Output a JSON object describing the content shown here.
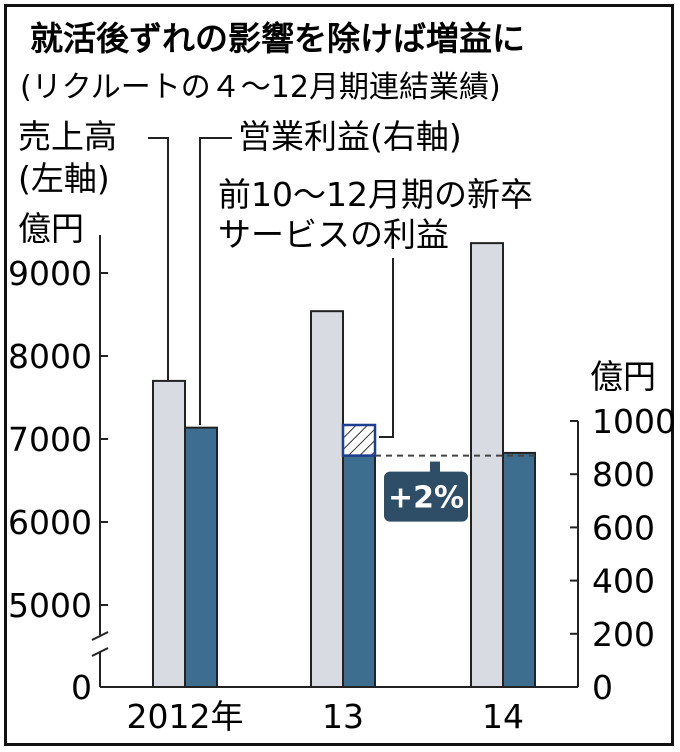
{
  "chart_data": {
    "type": "bar",
    "title": "就活後ずれの影響を除けば増益に",
    "subtitle": "(リクルートの４～12月期連結業績)",
    "categories": [
      "2012年",
      "13",
      "14"
    ],
    "left_axis": {
      "unit": "億円",
      "ticks": [
        "0",
        "5000",
        "6000",
        "7000",
        "8000",
        "9000"
      ],
      "range": [
        4400,
        9500
      ],
      "break": true
    },
    "right_axis": {
      "unit": "億円",
      "ticks": [
        "0",
        "200",
        "400",
        "600",
        "800",
        "1000"
      ],
      "range": [
        0,
        1000
      ]
    },
    "series": [
      {
        "name": "売上高",
        "name2": "(左軸)",
        "axis": "left",
        "values": [
          7700,
          8540,
          9360
        ],
        "color": "#d9dbe3"
      },
      {
        "name": "営業利益(右軸)",
        "axis": "right",
        "values": [
          975,
          870,
          880
        ],
        "color": "#3d6e8f"
      }
    ],
    "annotation": {
      "label_line1": "前10～12月期の新卒",
      "label_line2": "サービスの利益",
      "category_index": 1,
      "value_from": 870,
      "value_to": 985,
      "growth_label": "+2%",
      "growth_bg": "#2e4d66"
    }
  }
}
